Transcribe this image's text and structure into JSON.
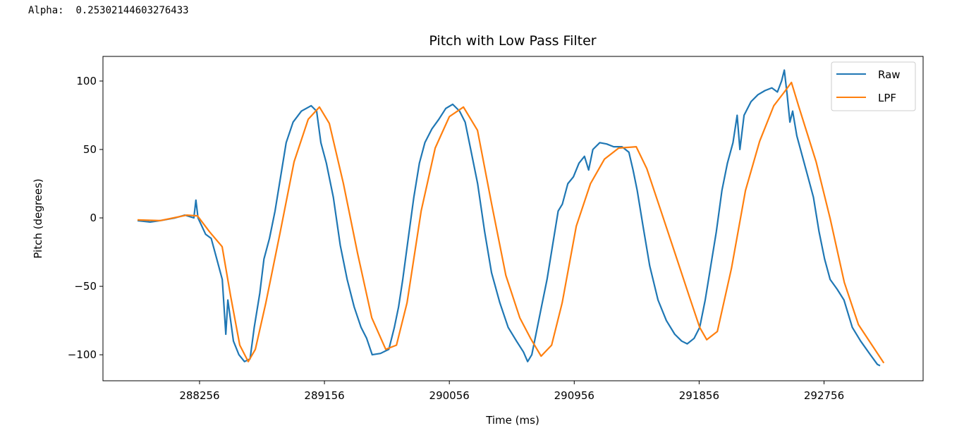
{
  "output_text": {
    "label": "Alpha:",
    "value": "0.25302144603276433"
  },
  "chart_data": {
    "type": "line",
    "title": "Pitch with Low Pass Filter",
    "xlabel": "Time (ms)",
    "ylabel": "Pitch (degrees)",
    "xlim": [
      287560,
      293470
    ],
    "ylim": [
      -119,
      118
    ],
    "xticks": [
      288256,
      289156,
      290056,
      290956,
      291856,
      292756
    ],
    "yticks": [
      -100,
      -50,
      0,
      50,
      100
    ],
    "ytick_labels": [
      "−100",
      "−50",
      "0",
      "50",
      "100"
    ],
    "grid": false,
    "legend_position": "top-right",
    "series": [
      {
        "name": "Raw",
        "color": "#1f77b4",
        "points": [
          [
            287809,
            -2
          ],
          [
            287900,
            -3
          ],
          [
            287971,
            -2
          ],
          [
            288080,
            0
          ],
          [
            288150,
            2
          ],
          [
            288215,
            0
          ],
          [
            288230,
            13
          ],
          [
            288245,
            0
          ],
          [
            288300,
            -12
          ],
          [
            288340,
            -15
          ],
          [
            288380,
            -30
          ],
          [
            288420,
            -45
          ],
          [
            288445,
            -85
          ],
          [
            288460,
            -60
          ],
          [
            288500,
            -90
          ],
          [
            288540,
            -100
          ],
          [
            288580,
            -105
          ],
          [
            288620,
            -103
          ],
          [
            288650,
            -80
          ],
          [
            288690,
            -55
          ],
          [
            288720,
            -30
          ],
          [
            288760,
            -15
          ],
          [
            288800,
            5
          ],
          [
            288840,
            30
          ],
          [
            288880,
            55
          ],
          [
            288930,
            70
          ],
          [
            288990,
            78
          ],
          [
            289060,
            82
          ],
          [
            289100,
            78
          ],
          [
            289130,
            55
          ],
          [
            289170,
            40
          ],
          [
            289220,
            15
          ],
          [
            289270,
            -20
          ],
          [
            289320,
            -45
          ],
          [
            289370,
            -65
          ],
          [
            289420,
            -80
          ],
          [
            289460,
            -88
          ],
          [
            289500,
            -100
          ],
          [
            289560,
            -99
          ],
          [
            289620,
            -96
          ],
          [
            289660,
            -80
          ],
          [
            289690,
            -65
          ],
          [
            289720,
            -45
          ],
          [
            289760,
            -15
          ],
          [
            289800,
            15
          ],
          [
            289840,
            40
          ],
          [
            289880,
            55
          ],
          [
            289930,
            65
          ],
          [
            289980,
            72
          ],
          [
            290030,
            80
          ],
          [
            290080,
            83
          ],
          [
            290130,
            78
          ],
          [
            290170,
            70
          ],
          [
            290210,
            50
          ],
          [
            290260,
            25
          ],
          [
            290310,
            -10
          ],
          [
            290360,
            -40
          ],
          [
            290420,
            -62
          ],
          [
            290480,
            -80
          ],
          [
            290540,
            -90
          ],
          [
            290590,
            -98
          ],
          [
            290620,
            -105
          ],
          [
            290650,
            -100
          ],
          [
            290680,
            -85
          ],
          [
            290720,
            -65
          ],
          [
            290760,
            -45
          ],
          [
            290800,
            -20
          ],
          [
            290840,
            5
          ],
          [
            290870,
            10
          ],
          [
            290910,
            25
          ],
          [
            290950,
            30
          ],
          [
            290990,
            40
          ],
          [
            291030,
            45
          ],
          [
            291060,
            35
          ],
          [
            291090,
            50
          ],
          [
            291140,
            55
          ],
          [
            291190,
            54
          ],
          [
            291240,
            52
          ],
          [
            291300,
            52
          ],
          [
            291350,
            48
          ],
          [
            291380,
            35
          ],
          [
            291410,
            20
          ],
          [
            291450,
            -5
          ],
          [
            291500,
            -35
          ],
          [
            291560,
            -60
          ],
          [
            291620,
            -75
          ],
          [
            291680,
            -85
          ],
          [
            291730,
            -90
          ],
          [
            291770,
            -92
          ],
          [
            291820,
            -88
          ],
          [
            291860,
            -80
          ],
          [
            291900,
            -60
          ],
          [
            291940,
            -35
          ],
          [
            291980,
            -10
          ],
          [
            292020,
            20
          ],
          [
            292060,
            40
          ],
          [
            292100,
            55
          ],
          [
            292130,
            75
          ],
          [
            292150,
            50
          ],
          [
            292180,
            75
          ],
          [
            292230,
            85
          ],
          [
            292280,
            90
          ],
          [
            292330,
            93
          ],
          [
            292380,
            95
          ],
          [
            292420,
            92
          ],
          [
            292450,
            100
          ],
          [
            292470,
            108
          ],
          [
            292490,
            90
          ],
          [
            292510,
            70
          ],
          [
            292530,
            78
          ],
          [
            292560,
            60
          ],
          [
            292600,
            45
          ],
          [
            292640,
            30
          ],
          [
            292680,
            15
          ],
          [
            292720,
            -10
          ],
          [
            292760,
            -30
          ],
          [
            292800,
            -45
          ],
          [
            292850,
            -52
          ],
          [
            292900,
            -60
          ],
          [
            292960,
            -80
          ],
          [
            293020,
            -90
          ],
          [
            293090,
            -100
          ],
          [
            293140,
            -107
          ],
          [
            293160,
            -108
          ]
        ]
      },
      {
        "name": "LPF",
        "color": "#ff7f0e",
        "points": [
          [
            287809,
            -1.5
          ],
          [
            287971,
            -2
          ],
          [
            288164,
            2
          ],
          [
            288241,
            1.5
          ],
          [
            288327,
            -10
          ],
          [
            288419,
            -21
          ],
          [
            288480,
            -57
          ],
          [
            288546,
            -93
          ],
          [
            288607,
            -105
          ],
          [
            288658,
            -96
          ],
          [
            288734,
            -62
          ],
          [
            288836,
            -11
          ],
          [
            288937,
            41
          ],
          [
            289039,
            72
          ],
          [
            289120,
            81
          ],
          [
            289191,
            69
          ],
          [
            289293,
            25
          ],
          [
            289395,
            -26
          ],
          [
            289497,
            -73
          ],
          [
            289598,
            -96
          ],
          [
            289675,
            -93
          ],
          [
            289751,
            -62
          ],
          [
            289853,
            5
          ],
          [
            289954,
            51
          ],
          [
            290056,
            74
          ],
          [
            290158,
            81
          ],
          [
            290259,
            64
          ],
          [
            290361,
            10
          ],
          [
            290463,
            -42
          ],
          [
            290564,
            -73
          ],
          [
            290641,
            -88
          ],
          [
            290717,
            -101
          ],
          [
            290793,
            -93
          ],
          [
            290869,
            -62
          ],
          [
            290971,
            -6
          ],
          [
            291073,
            25
          ],
          [
            291174,
            43
          ],
          [
            291276,
            51
          ],
          [
            291403,
            52
          ],
          [
            291479,
            36
          ],
          [
            291581,
            5
          ],
          [
            291683,
            -26
          ],
          [
            291784,
            -57
          ],
          [
            291860,
            -80
          ],
          [
            291911,
            -89
          ],
          [
            291987,
            -83
          ],
          [
            292089,
            -37
          ],
          [
            292190,
            20
          ],
          [
            292292,
            56
          ],
          [
            292394,
            82
          ],
          [
            292470,
            92
          ],
          [
            292521,
            99
          ],
          [
            292572,
            82
          ],
          [
            292699,
            41
          ],
          [
            292800,
            -0.5
          ],
          [
            292902,
            -47
          ],
          [
            293004,
            -78
          ],
          [
            293187,
            -106
          ]
        ]
      }
    ]
  }
}
